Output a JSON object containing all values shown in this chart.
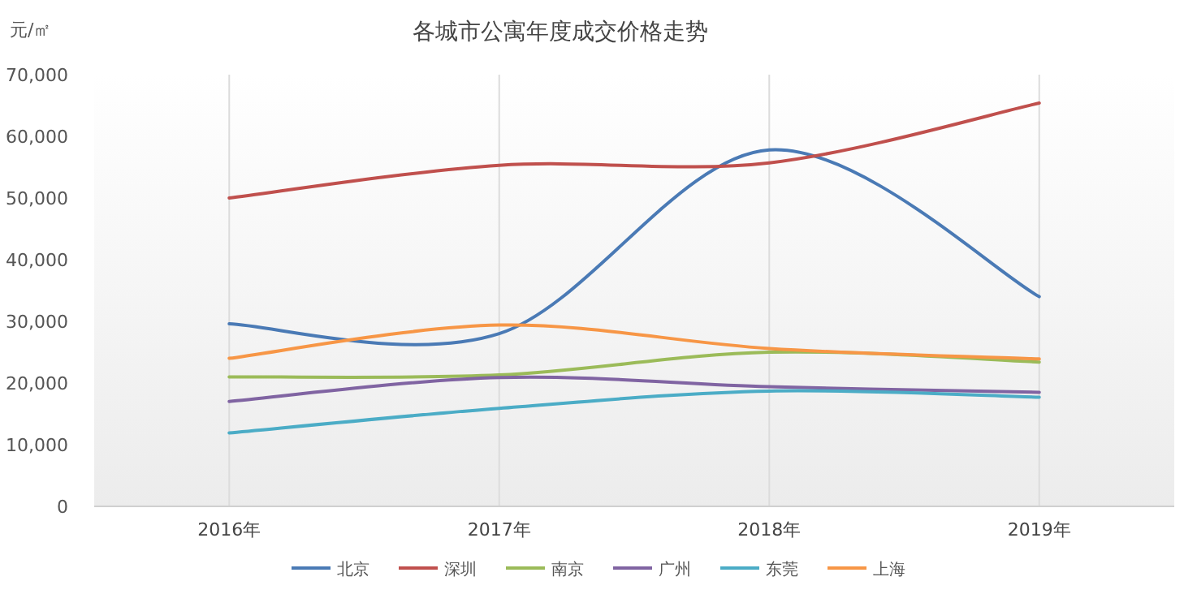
{
  "chart_data": {
    "type": "line",
    "title": "各城市公寓年度成交价格走势",
    "ylabel": "元/㎡",
    "categories": [
      "2016年",
      "2017年",
      "2018年",
      "2019年"
    ],
    "series": [
      {
        "name": "北京",
        "color": "#4a7ab5",
        "values": [
          29600,
          28000,
          57800,
          34000
        ]
      },
      {
        "name": "深圳",
        "color": "#c0504d",
        "values": [
          50000,
          55300,
          55700,
          65400
        ]
      },
      {
        "name": "南京",
        "color": "#9bbb59",
        "values": [
          21000,
          21300,
          25000,
          23400
        ]
      },
      {
        "name": "广州",
        "color": "#8064a2",
        "values": [
          17000,
          20900,
          19400,
          18500
        ]
      },
      {
        "name": "东莞",
        "color": "#4bacc6",
        "values": [
          11900,
          15900,
          18700,
          17700
        ]
      },
      {
        "name": "上海",
        "color": "#f79646",
        "values": [
          24000,
          29400,
          25600,
          23900
        ]
      }
    ],
    "ylim": [
      0,
      70000
    ],
    "yticks": [
      0,
      {
        "value": 10000,
        "label": "10,000"
      },
      {
        "value": 20000,
        "label": "20,000"
      },
      {
        "value": 30000,
        "label": "30,000"
      },
      {
        "value": 40000,
        "label": "40,000"
      },
      {
        "value": 50000,
        "label": "50,000"
      },
      {
        "value": 60000,
        "label": "60,000"
      },
      {
        "value": 70000,
        "label": "70,000"
      }
    ],
    "grid": "x",
    "legend": "bottom"
  }
}
